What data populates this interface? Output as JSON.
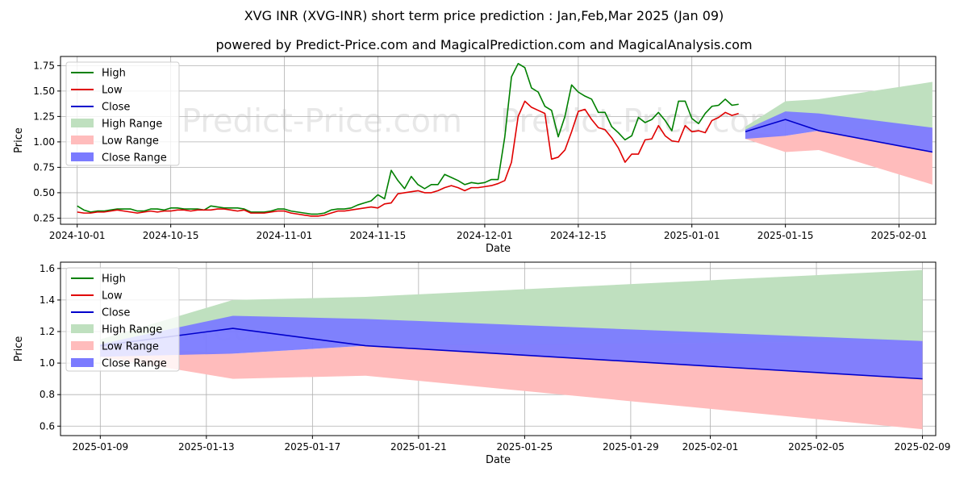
{
  "title": "XVG INR (XVG-INR) short term price prediction : Jan,Feb,Mar 2025 (Jan 09)",
  "subtitle": "powered by Predict-Price.com and MagicalPrediction.com and MagicalAnalysis.com",
  "watermark": "Predict-Price.com",
  "colors": {
    "high": "#008000",
    "low": "#e00000",
    "close": "#0000cc",
    "high_range": "#bfe0bf",
    "low_range": "#ffbcbc",
    "close_range": "#7b7bff"
  },
  "legend": [
    "High",
    "Low",
    "Close",
    "High Range",
    "Low Range",
    "Close Range"
  ],
  "chart_data": [
    {
      "type": "line",
      "title": "",
      "xlabel": "Date",
      "ylabel": "Price",
      "x_start": "2024-10-01",
      "xlim_days": [
        -2.5,
        128.5
      ],
      "ylim": [
        0.19,
        1.84
      ],
      "yticks": [
        "0.25",
        "0.50",
        "0.75",
        "1.00",
        "1.25",
        "1.50",
        "1.75"
      ],
      "ytick_values": [
        0.25,
        0.5,
        0.75,
        1.0,
        1.25,
        1.5,
        1.75
      ],
      "xticks": [
        "2024-10-01",
        "2024-10-15",
        "2024-11-01",
        "2024-11-15",
        "2024-12-01",
        "2024-12-15",
        "2025-01-01",
        "2025-01-15",
        "2025-02-01"
      ],
      "xtick_days": [
        0,
        14,
        31,
        45,
        61,
        75,
        92,
        106,
        123
      ],
      "series": [
        {
          "name": "High",
          "days": [
            0,
            1,
            2,
            3,
            4,
            5,
            6,
            7,
            8,
            9,
            10,
            11,
            12,
            13,
            14,
            15,
            16,
            17,
            18,
            19,
            20,
            21,
            22,
            23,
            24,
            25,
            26,
            27,
            28,
            29,
            30,
            31,
            32,
            33,
            34,
            35,
            36,
            37,
            38,
            39,
            40,
            41,
            42,
            43,
            44,
            45,
            46,
            47,
            48,
            49,
            50,
            51,
            52,
            53,
            54,
            55,
            56,
            57,
            58,
            59,
            60,
            61,
            62,
            63,
            64,
            65,
            66,
            67,
            68,
            69,
            70,
            71,
            72,
            73,
            74,
            75,
            76,
            77,
            78,
            79,
            80,
            81,
            82,
            83,
            84,
            85,
            86,
            87,
            88,
            89,
            90,
            91,
            92,
            93,
            94,
            95,
            96,
            97,
            98,
            99
          ],
          "values": [
            0.37,
            0.33,
            0.31,
            0.32,
            0.32,
            0.33,
            0.34,
            0.34,
            0.34,
            0.32,
            0.32,
            0.34,
            0.34,
            0.33,
            0.35,
            0.35,
            0.34,
            0.34,
            0.34,
            0.33,
            0.37,
            0.36,
            0.35,
            0.35,
            0.35,
            0.34,
            0.31,
            0.31,
            0.31,
            0.32,
            0.34,
            0.34,
            0.32,
            0.31,
            0.3,
            0.29,
            0.29,
            0.3,
            0.33,
            0.34,
            0.34,
            0.35,
            0.38,
            0.4,
            0.42,
            0.48,
            0.44,
            0.72,
            0.62,
            0.54,
            0.66,
            0.58,
            0.54,
            0.58,
            0.58,
            0.68,
            0.65,
            0.62,
            0.58,
            0.6,
            0.59,
            0.6,
            0.63,
            0.63,
            1.05,
            1.64,
            1.77,
            1.73,
            1.53,
            1.49,
            1.35,
            1.31,
            1.05,
            1.25,
            1.56,
            1.49,
            1.45,
            1.42,
            1.29,
            1.29,
            1.15,
            1.09,
            1.02,
            1.06,
            1.24,
            1.19,
            1.22,
            1.29,
            1.21,
            1.11,
            1.4,
            1.4,
            1.23,
            1.18,
            1.28,
            1.35,
            1.36,
            1.42,
            1.36,
            1.37
          ]
        },
        {
          "name": "Low",
          "days": [
            0,
            1,
            2,
            3,
            4,
            5,
            6,
            7,
            8,
            9,
            10,
            11,
            12,
            13,
            14,
            15,
            16,
            17,
            18,
            19,
            20,
            21,
            22,
            23,
            24,
            25,
            26,
            27,
            28,
            29,
            30,
            31,
            32,
            33,
            34,
            35,
            36,
            37,
            38,
            39,
            40,
            41,
            42,
            43,
            44,
            45,
            46,
            47,
            48,
            49,
            50,
            51,
            52,
            53,
            54,
            55,
            56,
            57,
            58,
            59,
            60,
            61,
            62,
            63,
            64,
            65,
            66,
            67,
            68,
            69,
            70,
            71,
            72,
            73,
            74,
            75,
            76,
            77,
            78,
            79,
            80,
            81,
            82,
            83,
            84,
            85,
            86,
            87,
            88,
            89,
            90,
            91,
            92,
            93,
            94,
            95,
            96,
            97,
            98,
            99
          ],
          "values": [
            0.31,
            0.3,
            0.3,
            0.31,
            0.31,
            0.32,
            0.33,
            0.32,
            0.31,
            0.3,
            0.31,
            0.32,
            0.31,
            0.32,
            0.32,
            0.33,
            0.33,
            0.32,
            0.33,
            0.33,
            0.33,
            0.34,
            0.34,
            0.33,
            0.32,
            0.33,
            0.3,
            0.3,
            0.3,
            0.31,
            0.32,
            0.32,
            0.3,
            0.29,
            0.28,
            0.27,
            0.27,
            0.28,
            0.3,
            0.32,
            0.32,
            0.33,
            0.34,
            0.35,
            0.36,
            0.35,
            0.39,
            0.4,
            0.49,
            0.5,
            0.51,
            0.52,
            0.5,
            0.5,
            0.52,
            0.55,
            0.57,
            0.55,
            0.52,
            0.55,
            0.55,
            0.56,
            0.57,
            0.59,
            0.62,
            0.8,
            1.25,
            1.4,
            1.34,
            1.31,
            1.28,
            0.83,
            0.85,
            0.92,
            1.1,
            1.3,
            1.32,
            1.22,
            1.14,
            1.12,
            1.04,
            0.94,
            0.8,
            0.88,
            0.88,
            1.02,
            1.03,
            1.16,
            1.06,
            1.01,
            1.0,
            1.16,
            1.1,
            1.11,
            1.09,
            1.21,
            1.24,
            1.29,
            1.26,
            1.28
          ]
        },
        {
          "name": "Close",
          "days": [
            100,
            106,
            111,
            128
          ],
          "values": [
            1.1,
            1.22,
            1.11,
            0.9
          ]
        }
      ],
      "ranges": [
        {
          "name": "High Range",
          "days": [
            100,
            106,
            111,
            128
          ],
          "lower": [
            1.1,
            1.22,
            1.11,
            1.14
          ],
          "upper": [
            1.15,
            1.4,
            1.42,
            1.59
          ]
        },
        {
          "name": "Low Range",
          "days": [
            100,
            106,
            111,
            128
          ],
          "lower": [
            1.03,
            0.9,
            0.92,
            0.58
          ],
          "upper": [
            1.1,
            1.06,
            1.11,
            1.14
          ]
        },
        {
          "name": "Close Range",
          "days": [
            100,
            106,
            111,
            128
          ],
          "lower": [
            1.03,
            1.06,
            1.11,
            0.9
          ],
          "upper": [
            1.12,
            1.3,
            1.28,
            1.14
          ]
        }
      ]
    },
    {
      "type": "line",
      "title": "",
      "xlabel": "Date",
      "ylabel": "Price",
      "x_start": "2025-01-09",
      "xlim_days": [
        -1.5,
        31.5
      ],
      "ylim": [
        0.54,
        1.64
      ],
      "yticks": [
        "0.6",
        "0.8",
        "1.0",
        "1.2",
        "1.4",
        "1.6"
      ],
      "ytick_values": [
        0.6,
        0.8,
        1.0,
        1.2,
        1.4,
        1.6
      ],
      "xticks": [
        "2025-01-09",
        "2025-01-13",
        "2025-01-17",
        "2025-01-21",
        "2025-01-25",
        "2025-01-29",
        "2025-02-01",
        "2025-02-05",
        "2025-02-09"
      ],
      "xtick_days": [
        0,
        4,
        8,
        12,
        16,
        20,
        23,
        27,
        31
      ],
      "series": [
        {
          "name": "Close",
          "days": [
            0,
            5,
            10,
            31
          ],
          "values": [
            1.11,
            1.22,
            1.11,
            0.9
          ]
        }
      ],
      "ranges": [
        {
          "name": "High Range",
          "days": [
            0,
            5,
            10,
            31
          ],
          "lower": [
            1.11,
            1.22,
            1.11,
            1.14
          ],
          "upper": [
            1.15,
            1.4,
            1.42,
            1.59
          ]
        },
        {
          "name": "Low Range",
          "days": [
            0,
            5,
            10,
            31
          ],
          "lower": [
            1.04,
            0.9,
            0.92,
            0.58
          ],
          "upper": [
            1.11,
            1.06,
            1.11,
            1.14
          ]
        },
        {
          "name": "Close Range",
          "days": [
            0,
            5,
            10,
            31
          ],
          "lower": [
            1.04,
            1.06,
            1.11,
            0.9
          ],
          "upper": [
            1.12,
            1.3,
            1.28,
            1.14
          ]
        }
      ]
    }
  ]
}
